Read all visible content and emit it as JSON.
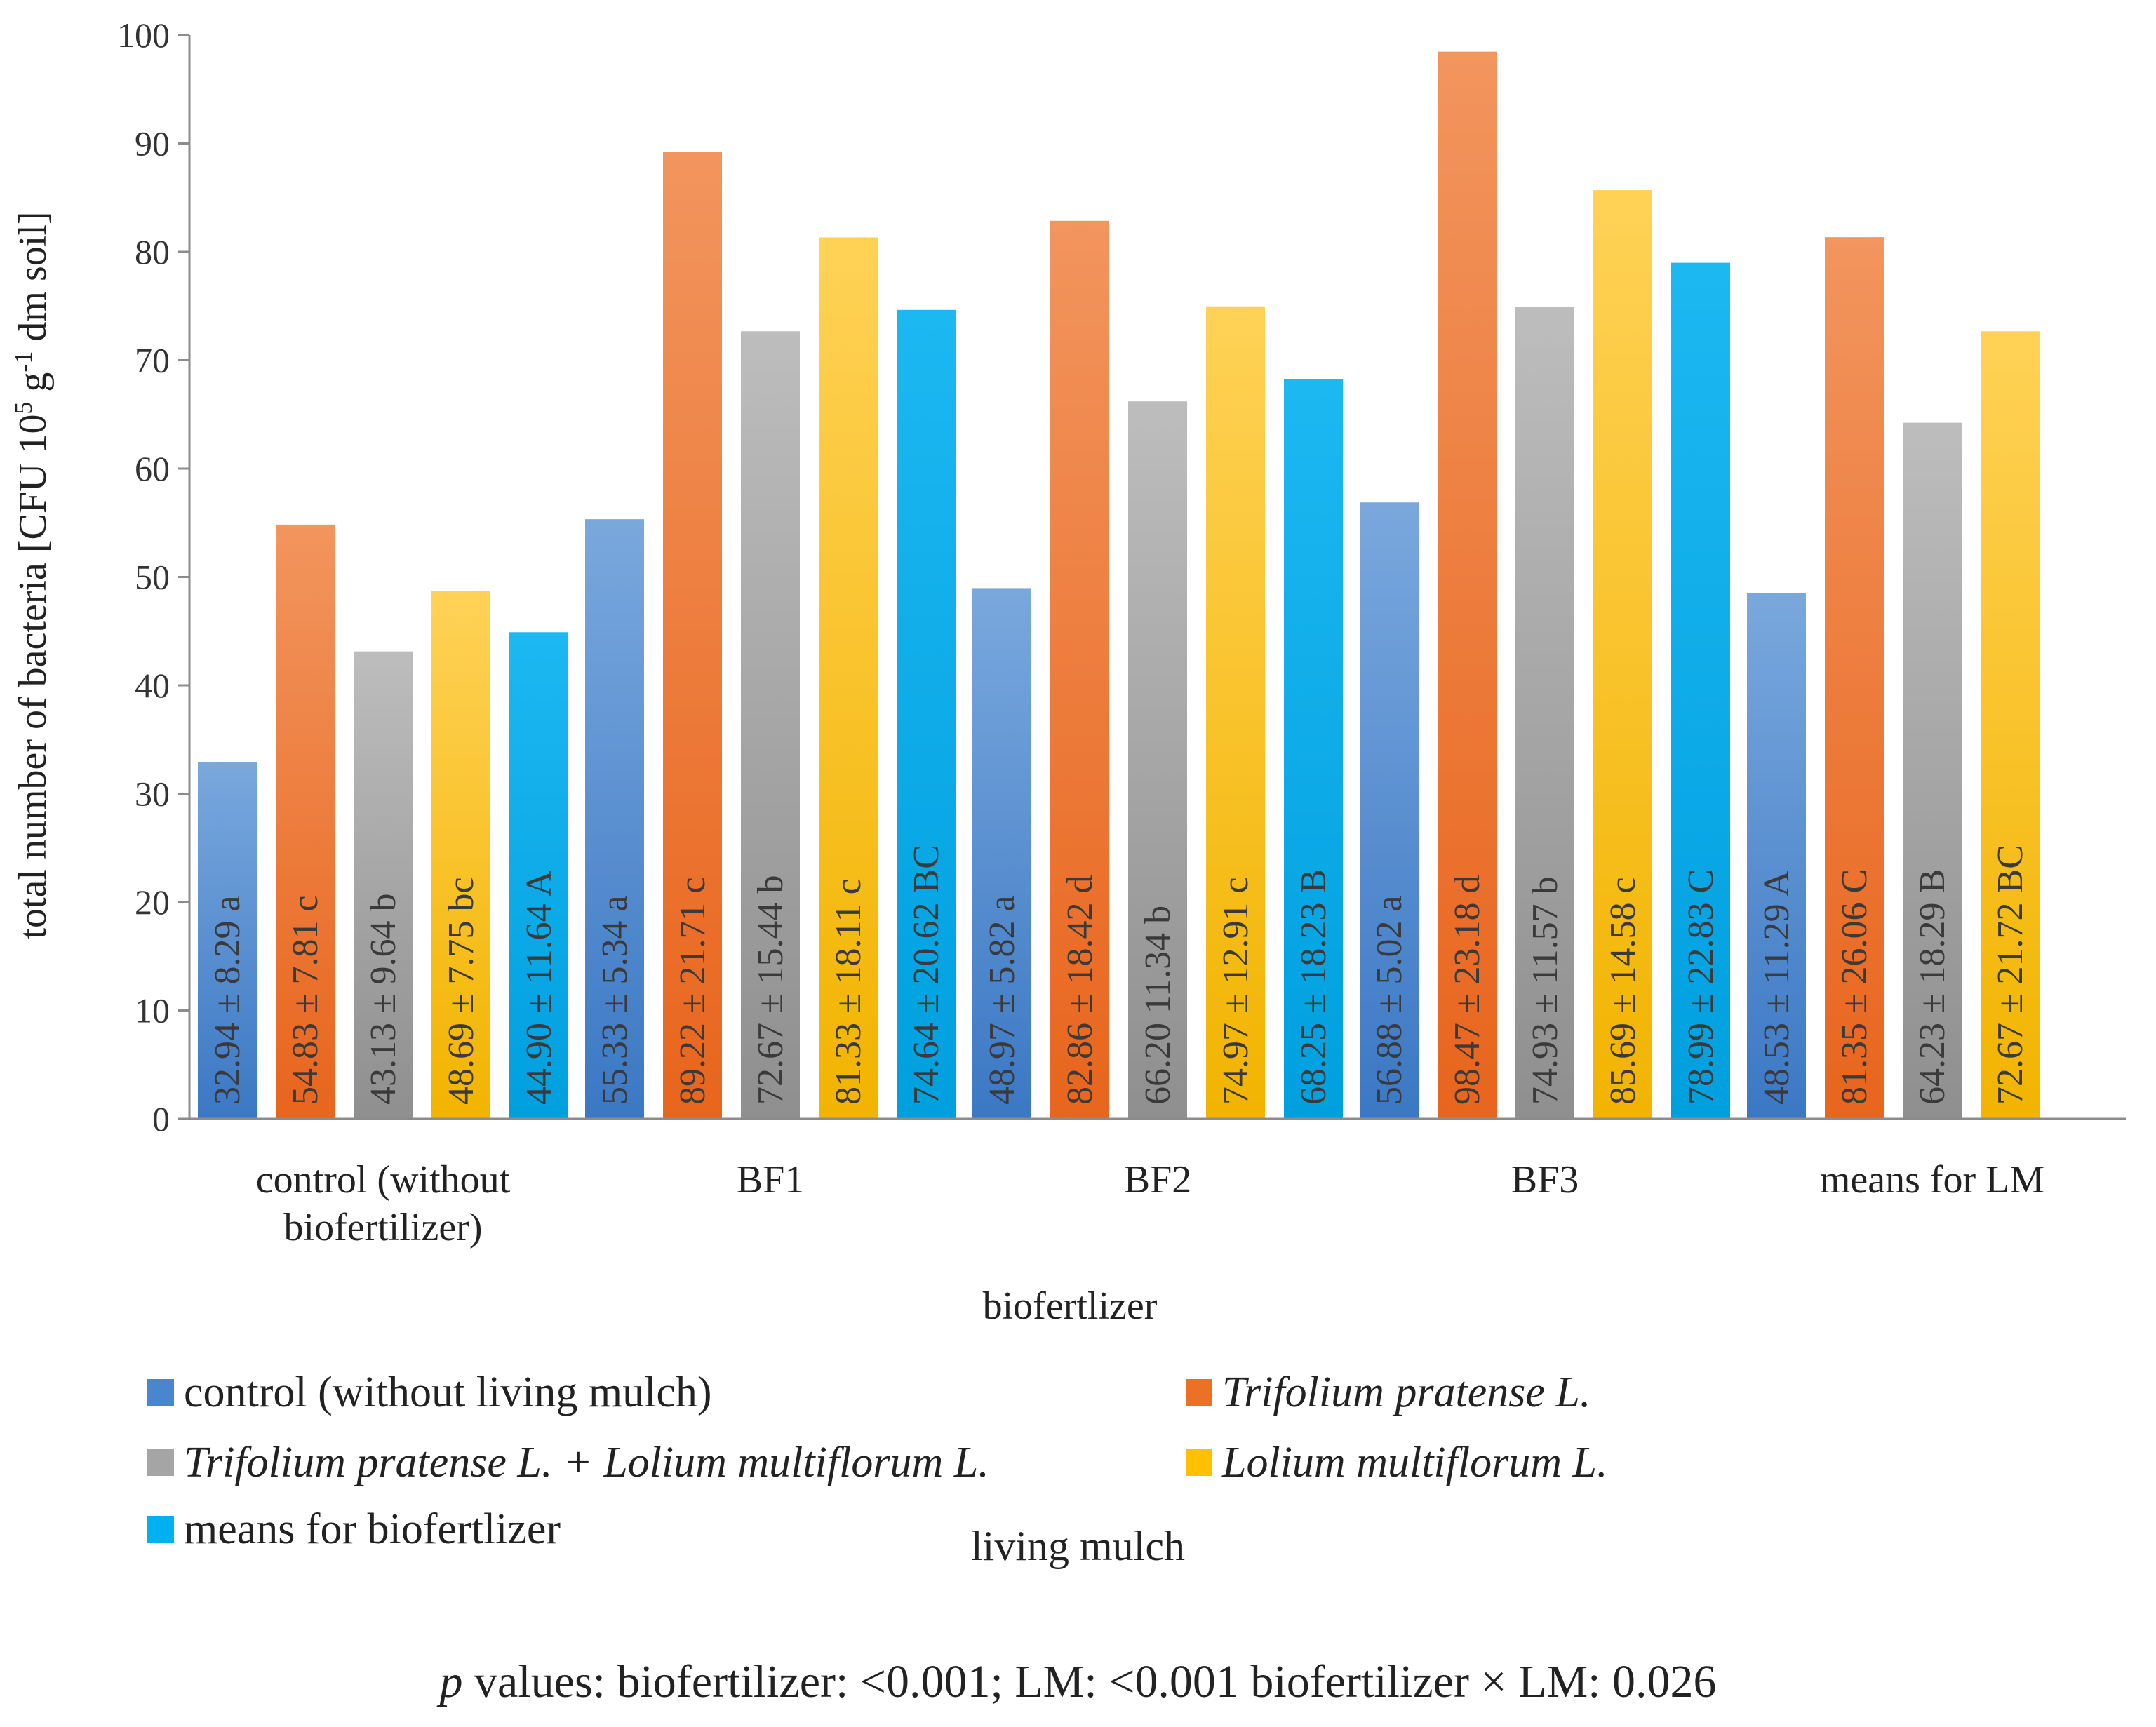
{
  "chart_data": {
    "type": "bar",
    "ylabel": "total number of bacteria  [CFU 10^5 g^-1 dm soil]",
    "ylabel_parts": {
      "pre": "total number of bacteria  [CFU 10",
      "sup1": "5",
      "mid": " g",
      "sup2": "-1",
      "post": " dm soil]"
    },
    "xlabel": "biofertlizer",
    "ylim": [
      0,
      100
    ],
    "yticks": [
      0,
      10,
      20,
      30,
      40,
      50,
      60,
      70,
      80,
      90,
      100
    ],
    "categories": [
      "control (without biofertilizer)",
      "BF1",
      "BF2",
      "BF3",
      "means for LM"
    ],
    "category_lines": [
      [
        "control (without",
        "biofertilizer)"
      ],
      [
        "BF1"
      ],
      [
        "BF2"
      ],
      [
        "BF3"
      ],
      [
        "means for LM"
      ]
    ],
    "series": [
      {
        "name": "control (without living mulch)",
        "italic": false,
        "color_top": "#7aa8dd",
        "color_bottom": "#3b78c4",
        "values": [
          32.94,
          55.33,
          48.97,
          56.88,
          48.53
        ],
        "labels": [
          "32.94 ± 8.29 a",
          "55.33 ± 5.34 a",
          "48.97 ± 5.82 a",
          "56.88 ± 5.02 a",
          "48.53 ± 11.29 A"
        ]
      },
      {
        "name": "Trifolium pratense L.",
        "italic": true,
        "color_top": "#f2955e",
        "color_bottom": "#e8651d",
        "values": [
          54.83,
          89.22,
          82.86,
          98.47,
          81.35
        ],
        "labels": [
          "54.83 ± 7.81 c",
          "89.22 ± 21.71 c",
          "82.86 ± 18.42 d",
          "98.47 ± 23.18 d",
          "81.35 ± 26.06 C"
        ]
      },
      {
        "name": "Trifolium pratense L. + Lolium multiflorum L.",
        "italic": true,
        "color_top": "#bdbdbd",
        "color_bottom": "#8f8f8f",
        "values": [
          43.13,
          72.67,
          66.2,
          74.93,
          64.23
        ],
        "labels": [
          "43.13 ± 9.64 b",
          "72.67 ± 15.44 b",
          "66.20 11.34 b",
          "74.93 ± 11.57 b",
          "64.23 ± 18.29 B"
        ]
      },
      {
        "name": "Lolium multiflorum L.",
        "italic": true,
        "color_top": "#ffd257",
        "color_bottom": "#f2b400",
        "values": [
          48.69,
          81.33,
          74.97,
          85.69,
          72.67
        ],
        "labels": [
          "48.69 ± 7.75 bc",
          "81.33 ± 18.11 c",
          "74.97 ± 12.91 c",
          "85.69 ± 14.58 c",
          "72.67 ± 21.72 BC"
        ]
      },
      {
        "name": "means for biofertlizer",
        "italic": false,
        "color_top": "#1cb8f2",
        "color_bottom": "#009fde",
        "values": [
          44.9,
          74.64,
          68.25,
          78.99,
          null
        ],
        "labels": [
          "44.90 ± 11.64 A",
          "74.64 ± 20.62 BC",
          "68.25 ± 18.23 B",
          "78.99 ± 22.83 C",
          ""
        ]
      }
    ],
    "legend_title": "living  mulch",
    "grid": false
  },
  "footer": {
    "p": "p",
    "text": " values: biofertilizer: <0.001; LM: <0.001 biofertilizer × LM:  0.026"
  },
  "legend_labels": {
    "s0": "control (without living mulch)",
    "s1": "Trifolium pratense L.",
    "s2": "Trifolium pratense L. + Lolium multiflorum L.",
    "s3": "Lolium multiflorum L.",
    "s4": "means for biofertlizer"
  }
}
